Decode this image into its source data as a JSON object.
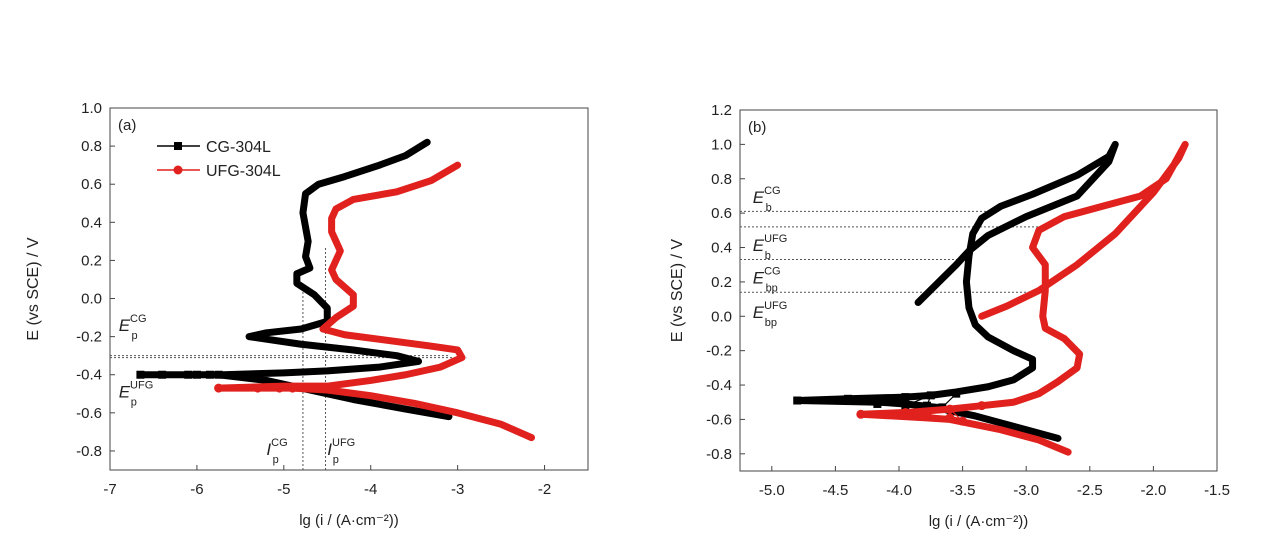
{
  "chart_data": [
    {
      "type": "line",
      "panel_label": "(a)",
      "xlabel": "lg (i / (A·cm⁻²))",
      "ylabel": "",
      "xlim": [
        -7,
        -1.5
      ],
      "ylim": [
        -0.9,
        1.0
      ],
      "xticks": [
        -7,
        -6,
        -5,
        -4,
        -3,
        -2
      ],
      "xtick_labels": [
        "-7",
        "-6",
        "-5",
        "-4",
        "-3",
        "-2"
      ],
      "yticks": [
        -0.8,
        -0.6,
        -0.4,
        -0.2,
        0.0,
        0.2,
        0.4,
        0.6,
        0.8,
        1.0
      ],
      "ytick_labels": [
        "-0.8",
        "-0.6",
        "-0.4",
        "-0.2",
        "0.0",
        "0.2",
        "0.4",
        "0.6",
        "0.8",
        "1.0"
      ],
      "legend": {
        "placement": "top-left",
        "entries": [
          "CG-304L",
          "UFG-304L"
        ]
      },
      "series": [
        {
          "name": "CG-304L",
          "color": "#000000",
          "marker": "square",
          "x": [
            -3.1,
            -3.6,
            -4.2,
            -4.8,
            -5.2,
            -5.75,
            -5.85,
            -6.0,
            -6.1,
            -6.4,
            -6.65,
            -6.0,
            -5.7,
            -5.0,
            -4.5,
            -3.9,
            -3.45,
            -3.7,
            -4.2,
            -4.8,
            -5.4,
            -5.2,
            -4.8,
            -4.5,
            -4.5,
            -4.65,
            -4.85,
            -4.85,
            -4.7,
            -4.75,
            -4.72,
            -4.78,
            -4.75,
            -4.6,
            -4.3,
            -3.9,
            -3.6,
            -3.35
          ],
          "y": [
            -0.62,
            -0.58,
            -0.53,
            -0.47,
            -0.43,
            -0.4,
            -0.4,
            -0.4,
            -0.4,
            -0.4,
            -0.4,
            -0.4,
            -0.4,
            -0.39,
            -0.38,
            -0.36,
            -0.33,
            -0.3,
            -0.27,
            -0.24,
            -0.2,
            -0.18,
            -0.16,
            -0.12,
            -0.05,
            0.02,
            0.08,
            0.13,
            0.16,
            0.22,
            0.3,
            0.45,
            0.55,
            0.6,
            0.64,
            0.7,
            0.75,
            0.82
          ],
          "sparse_markers": [
            [
              -6.65,
              -0.4
            ],
            [
              -6.4,
              -0.4
            ],
            [
              -6.1,
              -0.4
            ],
            [
              -6.0,
              -0.4
            ],
            [
              -5.85,
              -0.4
            ],
            [
              -5.75,
              -0.4
            ]
          ]
        },
        {
          "name": "UFG-304L",
          "color": "#e0211d",
          "marker": "circle",
          "x": [
            -2.15,
            -2.5,
            -3.0,
            -3.5,
            -4.0,
            -4.5,
            -4.9,
            -5.0,
            -5.3,
            -5.75,
            -5.0,
            -4.5,
            -4.0,
            -3.6,
            -3.2,
            -2.95,
            -3.0,
            -3.3,
            -3.8,
            -4.3,
            -4.55,
            -4.4,
            -4.2,
            -4.2,
            -4.3,
            -4.4,
            -4.45,
            -4.35,
            -4.4,
            -4.45,
            -4.45,
            -4.4,
            -4.2,
            -3.7,
            -3.3,
            -3.0
          ],
          "y": [
            -0.73,
            -0.66,
            -0.6,
            -0.55,
            -0.51,
            -0.48,
            -0.47,
            -0.47,
            -0.47,
            -0.47,
            -0.46,
            -0.46,
            -0.43,
            -0.4,
            -0.36,
            -0.31,
            -0.27,
            -0.25,
            -0.22,
            -0.19,
            -0.16,
            -0.1,
            -0.04,
            0.02,
            0.06,
            0.1,
            0.15,
            0.25,
            0.3,
            0.35,
            0.42,
            0.47,
            0.52,
            0.56,
            0.62,
            0.7
          ],
          "sparse_markers": [
            [
              -5.75,
              -0.47
            ],
            [
              -5.3,
              -0.47
            ],
            [
              -5.05,
              -0.47
            ],
            [
              -4.9,
              -0.47
            ]
          ]
        }
      ],
      "reference_lines": [
        {
          "orientation": "horizontal",
          "value": -0.3,
          "from": -7,
          "to": -3.1
        },
        {
          "orientation": "horizontal",
          "value": -0.31,
          "from": -7,
          "to": -2.9
        },
        {
          "orientation": "vertical",
          "value": -4.78,
          "from": -0.9,
          "to": 0.05
        },
        {
          "orientation": "vertical",
          "value": -4.52,
          "from": -0.9,
          "to": 0.27
        }
      ],
      "annotations": [
        {
          "text": "E",
          "sup": "CG",
          "sub": "p",
          "x": -6.9,
          "y": -0.17
        },
        {
          "text": "E",
          "sup": "UFG",
          "sub": "p",
          "x": -6.9,
          "y": -0.52
        },
        {
          "text": "I",
          "sup": "CG",
          "sub": "p",
          "x": -5.2,
          "y": -0.82
        },
        {
          "text": "I",
          "sup": "UFG",
          "sub": "p",
          "x": -4.5,
          "y": -0.82
        }
      ]
    },
    {
      "type": "line",
      "panel_label": "(b)",
      "xlabel": "lg (i / (A·cm⁻²))",
      "ylabel": "E (vs SCE) / V",
      "xlim": [
        -5.25,
        -1.5
      ],
      "ylim": [
        -0.9,
        1.2
      ],
      "xticks": [
        -5.0,
        -4.5,
        -4.0,
        -3.5,
        -3.0,
        -2.5,
        -2.0,
        -1.5
      ],
      "xtick_labels": [
        "-5.0",
        "-4.5",
        "-4.0",
        "-3.5",
        "-3.0",
        "-2.5",
        "-2.0",
        "-1.5"
      ],
      "yticks": [
        -0.8,
        -0.6,
        -0.4,
        -0.2,
        0.0,
        0.2,
        0.4,
        0.6,
        0.8,
        1.0,
        1.2
      ],
      "ytick_labels": [
        "-0.8",
        "-0.6",
        "-0.4",
        "-0.2",
        "0.0",
        "0.2",
        "0.4",
        "0.6",
        "0.8",
        "1.0",
        "1.2"
      ],
      "series": [
        {
          "color": "#000000",
          "marker": "square",
          "x": [
            -2.75,
            -3.0,
            -3.2,
            -3.4,
            -3.6,
            -3.7,
            -3.95,
            -4.15,
            -4.8,
            -4.4,
            -3.95,
            -3.75,
            -3.55,
            -3.3,
            -3.1,
            -2.95,
            -2.95,
            -3.1,
            -3.3,
            -3.4,
            -3.45,
            -3.47,
            -3.45,
            -3.42,
            -3.35,
            -3.2,
            -2.95,
            -2.6,
            -2.35,
            -2.3,
            -2.35,
            -2.6,
            -3.0,
            -3.3,
            -3.45,
            -3.55,
            -3.85
          ],
          "y": [
            -0.71,
            -0.66,
            -0.62,
            -0.58,
            -0.55,
            -0.53,
            -0.51,
            -0.5,
            -0.49,
            -0.48,
            -0.47,
            -0.46,
            -0.44,
            -0.41,
            -0.37,
            -0.3,
            -0.25,
            -0.2,
            -0.12,
            -0.05,
            0.05,
            0.2,
            0.35,
            0.48,
            0.57,
            0.64,
            0.71,
            0.82,
            0.93,
            1.0,
            0.9,
            0.7,
            0.58,
            0.47,
            0.38,
            0.3,
            0.08
          ],
          "sparse_markers": [
            [
              -4.8,
              -0.49
            ],
            [
              -4.4,
              -0.48
            ],
            [
              -4.17,
              -0.51
            ],
            [
              -3.95,
              -0.47
            ],
            [
              -3.95,
              -0.52
            ],
            [
              -3.75,
              -0.46
            ],
            [
              -3.78,
              -0.52
            ],
            [
              -3.66,
              -0.53
            ],
            [
              -3.55,
              -0.45
            ]
          ]
        },
        {
          "color": "#e0211d",
          "marker": "circle",
          "x": [
            -2.67,
            -2.9,
            -3.2,
            -3.4,
            -3.6,
            -3.8,
            -4.3,
            -3.95,
            -3.6,
            -3.35,
            -3.1,
            -2.9,
            -2.75,
            -2.6,
            -2.58,
            -2.7,
            -2.85,
            -2.87,
            -2.85,
            -2.85,
            -2.95,
            -2.9,
            -2.7,
            -2.4,
            -2.1,
            -1.9,
            -1.75,
            -1.8,
            -2.0,
            -2.3,
            -2.6,
            -2.9,
            -3.15,
            -3.35
          ],
          "y": [
            -0.79,
            -0.72,
            -0.66,
            -0.63,
            -0.6,
            -0.59,
            -0.57,
            -0.56,
            -0.54,
            -0.52,
            -0.5,
            -0.45,
            -0.38,
            -0.3,
            -0.22,
            -0.13,
            -0.07,
            0.0,
            0.15,
            0.3,
            0.4,
            0.5,
            0.58,
            0.64,
            0.7,
            0.8,
            1.0,
            0.92,
            0.72,
            0.48,
            0.3,
            0.15,
            0.06,
            0.0
          ],
          "sparse_markers": [
            [
              -4.3,
              -0.57
            ],
            [
              -3.95,
              -0.56
            ],
            [
              -3.78,
              -0.57
            ],
            [
              -3.6,
              -0.59
            ],
            [
              -3.5,
              -0.61
            ],
            [
              -3.6,
              -0.54
            ],
            [
              -3.35,
              -0.52
            ]
          ]
        }
      ],
      "reference_lines": [
        {
          "orientation": "horizontal",
          "value": 0.61,
          "from": -5.25,
          "to": -3.3
        },
        {
          "orientation": "horizontal",
          "value": 0.52,
          "from": -5.25,
          "to": -2.85
        },
        {
          "orientation": "horizontal",
          "value": 0.33,
          "from": -5.25,
          "to": -3.45
        },
        {
          "orientation": "horizontal",
          "value": 0.14,
          "from": -5.25,
          "to": -2.85
        }
      ],
      "annotations": [
        {
          "text": "E",
          "sup": "CG",
          "sub": "b",
          "x": -5.15,
          "y": 0.66
        },
        {
          "text": "E",
          "sup": "UFG",
          "sub": "b",
          "x": -5.15,
          "y": 0.38
        },
        {
          "text": "E",
          "sup": "CG",
          "sub": "bp",
          "x": -5.15,
          "y": 0.19
        },
        {
          "text": "E",
          "sup": "UFG",
          "sub": "bp",
          "x": -5.15,
          "y": -0.01
        }
      ]
    }
  ],
  "ylabel_a": "E (vs SCE) / V"
}
